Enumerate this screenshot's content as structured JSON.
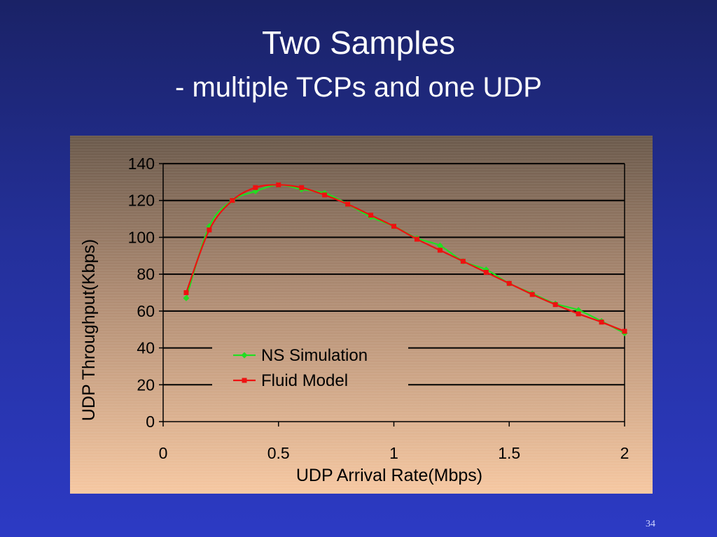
{
  "slide": {
    "title": "Two Samples",
    "subtitle": "- multiple TCPs and one UDP",
    "page_number": "34"
  },
  "chart_data": {
    "type": "line",
    "xlabel": "UDP Arrival Rate(Mbps)",
    "ylabel": "UDP Throughput(Kbps)",
    "xlim": [
      0,
      2
    ],
    "ylim": [
      0,
      140
    ],
    "x_ticks": [
      0,
      0.5,
      1,
      1.5,
      2
    ],
    "y_ticks": [
      0,
      20,
      40,
      60,
      80,
      100,
      120,
      140
    ],
    "grid": "horizontal",
    "legend_position": "center",
    "series": [
      {
        "name": "NS Simulation",
        "color": "#22dd22",
        "marker": "diamond",
        "x": [
          0.1,
          0.2,
          0.3,
          0.4,
          0.5,
          0.6,
          0.7,
          0.8,
          0.9,
          1.0,
          1.1,
          1.2,
          1.3,
          1.4,
          1.5,
          1.6,
          1.7,
          1.8,
          1.9,
          2.0
        ],
        "values": [
          67,
          106,
          120,
          125,
          128.5,
          126,
          124,
          118,
          111,
          106,
          99.5,
          95.5,
          87,
          82.5,
          75,
          69.5,
          64,
          60.5,
          54.5,
          48
        ]
      },
      {
        "name": "Fluid Model",
        "color": "#ee1111",
        "marker": "square",
        "x": [
          0.1,
          0.2,
          0.3,
          0.4,
          0.5,
          0.6,
          0.7,
          0.8,
          0.9,
          1.0,
          1.1,
          1.2,
          1.3,
          1.4,
          1.5,
          1.6,
          1.7,
          1.8,
          1.9,
          2.0
        ],
        "values": [
          70,
          104,
          120,
          127,
          128.5,
          127,
          123,
          118,
          112,
          106,
          99,
          93,
          87,
          81,
          75,
          69,
          63.5,
          58.5,
          54,
          49
        ]
      }
    ]
  }
}
